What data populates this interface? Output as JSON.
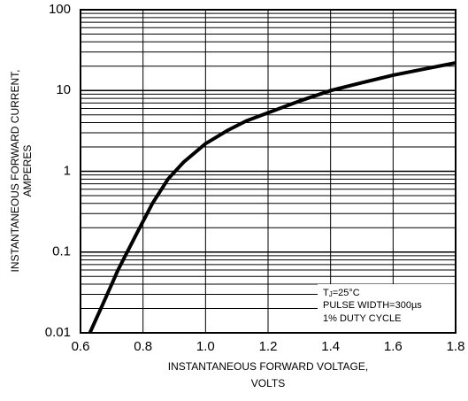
{
  "chart_data": {
    "type": "line",
    "title": "",
    "xlabel": [
      "INSTANTANEOUS FORWARD VOLTAGE,",
      "VOLTS"
    ],
    "ylabel": [
      "INSTANTANEOUS FORWARD CURRENT,",
      "AMPERES"
    ],
    "xlim": [
      0.6,
      1.8
    ],
    "ylim": [
      0.01,
      100
    ],
    "yscale": "log",
    "grid": true,
    "x_ticks": [
      {
        "value": 0.6,
        "label": "0.6"
      },
      {
        "value": 0.8,
        "label": "0.8"
      },
      {
        "value": 1.0,
        "label": "1.0"
      },
      {
        "value": 1.2,
        "label": "1.2"
      },
      {
        "value": 1.4,
        "label": "1.4"
      },
      {
        "value": 1.6,
        "label": "1.6"
      },
      {
        "value": 1.8,
        "label": "1.8"
      }
    ],
    "y_ticks": [
      {
        "value": 0.01,
        "label": "0.01"
      },
      {
        "value": 0.1,
        "label": "0.1"
      },
      {
        "value": 1,
        "label": "1"
      },
      {
        "value": 10,
        "label": "10"
      },
      {
        "value": 100,
        "label": "100"
      }
    ],
    "series": [
      {
        "x": [
          0.63,
          0.67,
          0.72,
          0.78,
          0.83,
          0.88,
          0.93,
          1.0,
          1.07,
          1.13,
          1.2,
          1.3,
          1.4,
          1.5,
          1.6,
          1.7,
          1.8
        ],
        "y": [
          0.01,
          0.022,
          0.06,
          0.17,
          0.4,
          0.8,
          1.3,
          2.2,
          3.2,
          4.2,
          5.3,
          7.4,
          10,
          12.5,
          15.5,
          18.5,
          22
        ]
      }
    ],
    "annotations": [
      "TJ=25°C",
      "PULSE WIDTH=300µs",
      "1% DUTY CYCLE"
    ]
  }
}
